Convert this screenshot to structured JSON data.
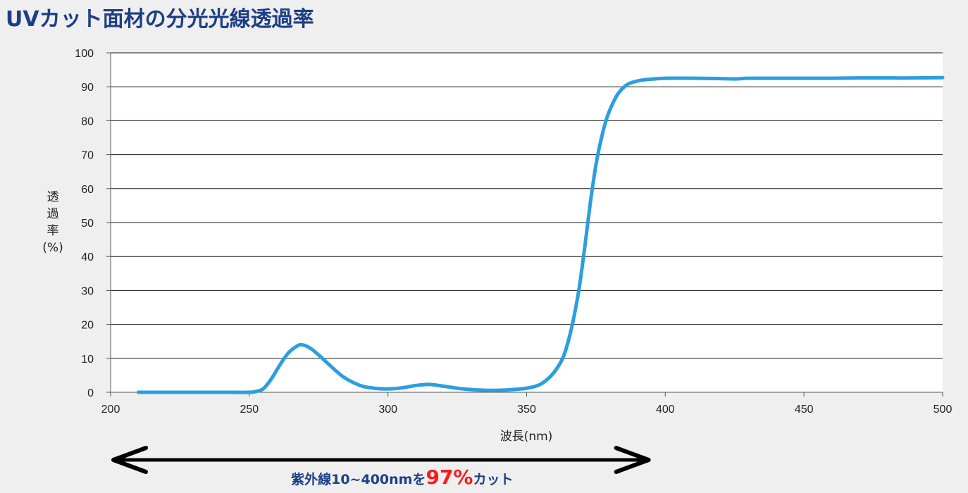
{
  "title": "UVカット面材の分光光線透過率",
  "chart_data": {
    "type": "line",
    "xlabel": "波長(nm)",
    "ylabel": "透過率(%)",
    "xlim": [
      200,
      500
    ],
    "ylim": [
      0,
      100
    ],
    "xticks": [
      200,
      250,
      300,
      350,
      400,
      450,
      500
    ],
    "yticks": [
      0,
      10,
      20,
      30,
      40,
      50,
      60,
      70,
      80,
      90,
      100
    ],
    "grid": "horizontal",
    "line_color": "#2a9fe0",
    "series": [
      {
        "x": [
          210,
          220,
          230,
          240,
          250,
          252,
          255,
          258,
          261,
          264,
          267,
          269,
          272,
          275,
          279,
          284,
          290,
          295,
          300,
          305,
          310,
          315,
          320,
          325,
          330,
          335,
          340,
          345,
          350,
          354,
          357,
          360,
          363,
          365,
          367,
          369,
          371,
          373,
          375,
          377,
          379,
          381,
          383,
          386,
          389,
          392,
          396,
          400,
          410,
          420,
          425,
          430,
          440,
          450,
          460,
          470,
          480,
          490,
          500
        ],
        "y": [
          0,
          0,
          0,
          0,
          0,
          0.2,
          1,
          4,
          8,
          11.5,
          13.5,
          14,
          13,
          11,
          8,
          4.5,
          2,
          1.2,
          1,
          1.3,
          2,
          2.3,
          1.8,
          1.2,
          0.8,
          0.6,
          0.6,
          0.8,
          1.2,
          2,
          3.5,
          6,
          10,
          15,
          22,
          31,
          43,
          56,
          67,
          75,
          81,
          85,
          88,
          90.5,
          91.5,
          92,
          92.3,
          92.5,
          92.5,
          92.4,
          92.3,
          92.5,
          92.5,
          92.5,
          92.5,
          92.6,
          92.6,
          92.6,
          92.7
        ]
      }
    ]
  },
  "annotation": {
    "before": "紫外線10~400nmを",
    "highlight": "97%",
    "after": "カット",
    "range_start": 200,
    "range_end": 395
  },
  "colors": {
    "title": "#1c3f86",
    "highlight": "#ff1a1a",
    "arrow": "#000000"
  }
}
